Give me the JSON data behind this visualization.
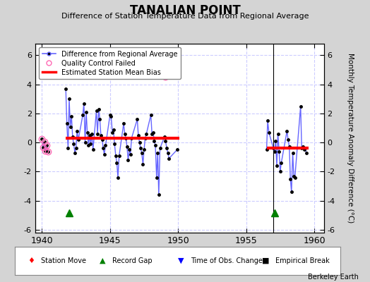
{
  "title": "TANALIAN POINT",
  "subtitle": "Difference of Station Temperature Data from Regional Average",
  "ylabel": "Monthly Temperature Anomaly Difference (°C)",
  "xlabel_credit": "Berkeley Earth",
  "xlim": [
    1939.5,
    1960.7
  ],
  "ylim": [
    -6.2,
    6.8
  ],
  "yticks": [
    -6,
    -4,
    -2,
    0,
    2,
    4,
    6
  ],
  "xticks": [
    1940,
    1945,
    1950,
    1955,
    1960
  ],
  "background_color": "#d4d4d4",
  "plot_bg_color": "#ffffff",
  "segment1_bias": 0.28,
  "segment1_x_start": 1941.75,
  "segment1_x_end": 1950.08,
  "segment2_bias": -0.38,
  "segment2_x_start": 1956.5,
  "segment2_x_end": 1959.6,
  "record_gap1_x": 1942.0,
  "record_gap2_x": 1957.1,
  "record_gap_y": -4.85,
  "vline1_x": 1957.0,
  "qc_cluster_x": [
    1940.0,
    1940.08,
    1940.17,
    1940.25,
    1940.33,
    1940.42
  ],
  "qc_cluster_y": [
    0.25,
    -0.35,
    0.05,
    -0.55,
    -0.2,
    -0.6
  ],
  "qc_outlier_x": 1949.08,
  "qc_outlier_y": 4.5,
  "main_data_seg1": [
    [
      1941.75,
      3.7
    ],
    [
      1941.83,
      1.3
    ],
    [
      1941.92,
      -0.4
    ],
    [
      1942.0,
      3.0
    ],
    [
      1942.08,
      1.1
    ],
    [
      1942.17,
      1.8
    ],
    [
      1942.25,
      0.4
    ],
    [
      1942.33,
      -0.1
    ],
    [
      1942.42,
      -0.7
    ],
    [
      1942.5,
      -0.4
    ],
    [
      1942.58,
      0.8
    ],
    [
      1942.67,
      0.2
    ],
    [
      1943.0,
      1.9
    ],
    [
      1943.08,
      2.7
    ],
    [
      1943.17,
      -0.0
    ],
    [
      1943.25,
      2.1
    ],
    [
      1943.33,
      0.7
    ],
    [
      1943.42,
      -0.2
    ],
    [
      1943.5,
      0.5
    ],
    [
      1943.58,
      -0.1
    ],
    [
      1943.67,
      0.6
    ],
    [
      1943.75,
      -0.5
    ],
    [
      1944.0,
      2.2
    ],
    [
      1944.08,
      0.6
    ],
    [
      1944.17,
      2.3
    ],
    [
      1944.25,
      1.6
    ],
    [
      1944.33,
      0.5
    ],
    [
      1944.42,
      0.2
    ],
    [
      1944.5,
      -0.4
    ],
    [
      1944.58,
      -0.8
    ],
    [
      1944.67,
      -0.2
    ],
    [
      1945.0,
      1.9
    ],
    [
      1945.08,
      1.8
    ],
    [
      1945.17,
      0.7
    ],
    [
      1945.25,
      0.9
    ],
    [
      1945.33,
      -0.1
    ],
    [
      1945.42,
      -0.9
    ],
    [
      1945.5,
      -1.4
    ],
    [
      1945.58,
      -2.4
    ],
    [
      1945.67,
      -0.9
    ],
    [
      1946.0,
      1.3
    ],
    [
      1946.08,
      0.6
    ],
    [
      1946.17,
      0.3
    ],
    [
      1946.25,
      -0.3
    ],
    [
      1946.33,
      -1.2
    ],
    [
      1946.42,
      -0.5
    ],
    [
      1946.5,
      -0.8
    ],
    [
      1946.58,
      0.3
    ],
    [
      1947.0,
      1.6
    ],
    [
      1947.08,
      0.5
    ],
    [
      1947.17,
      0.0
    ],
    [
      1947.25,
      -0.4
    ],
    [
      1947.33,
      -0.7
    ],
    [
      1947.42,
      -1.5
    ],
    [
      1947.5,
      -0.5
    ],
    [
      1947.58,
      0.3
    ],
    [
      1947.67,
      0.6
    ],
    [
      1948.0,
      1.9
    ],
    [
      1948.08,
      0.6
    ],
    [
      1948.17,
      0.7
    ],
    [
      1948.25,
      0.1
    ],
    [
      1948.33,
      -0.2
    ],
    [
      1948.42,
      -2.4
    ],
    [
      1948.5,
      -0.7
    ],
    [
      1948.58,
      -3.6
    ],
    [
      1948.67,
      -0.4
    ],
    [
      1949.0,
      0.4
    ],
    [
      1949.08,
      0.1
    ],
    [
      1949.17,
      -0.4
    ],
    [
      1949.25,
      -0.7
    ],
    [
      1949.33,
      -1.1
    ],
    [
      1949.92,
      -0.5
    ]
  ],
  "main_data_seg2": [
    [
      1956.5,
      -0.5
    ],
    [
      1956.58,
      1.5
    ],
    [
      1956.67,
      0.7
    ],
    [
      1957.0,
      -0.4
    ],
    [
      1957.08,
      -0.6
    ],
    [
      1957.17,
      0.1
    ],
    [
      1957.25,
      -1.6
    ],
    [
      1957.33,
      0.6
    ],
    [
      1957.42,
      -0.6
    ],
    [
      1957.5,
      -2.0
    ],
    [
      1957.58,
      -1.4
    ],
    [
      1958.0,
      0.8
    ],
    [
      1958.08,
      0.2
    ],
    [
      1958.17,
      -0.3
    ],
    [
      1958.25,
      -2.5
    ],
    [
      1958.33,
      -3.4
    ],
    [
      1958.42,
      -0.7
    ],
    [
      1958.5,
      -2.3
    ],
    [
      1958.58,
      -2.4
    ],
    [
      1959.0,
      2.5
    ],
    [
      1959.08,
      -0.4
    ],
    [
      1959.17,
      -0.3
    ],
    [
      1959.25,
      -0.5
    ],
    [
      1959.33,
      -0.4
    ],
    [
      1959.42,
      -0.7
    ]
  ],
  "line_color": "#6666ff",
  "dot_color": "#000000",
  "qc_color": "#ff69b4",
  "bias_color": "#ff0000",
  "gap_color": "#008000",
  "grid_color": "#ccccff",
  "vline_color": "#000000"
}
